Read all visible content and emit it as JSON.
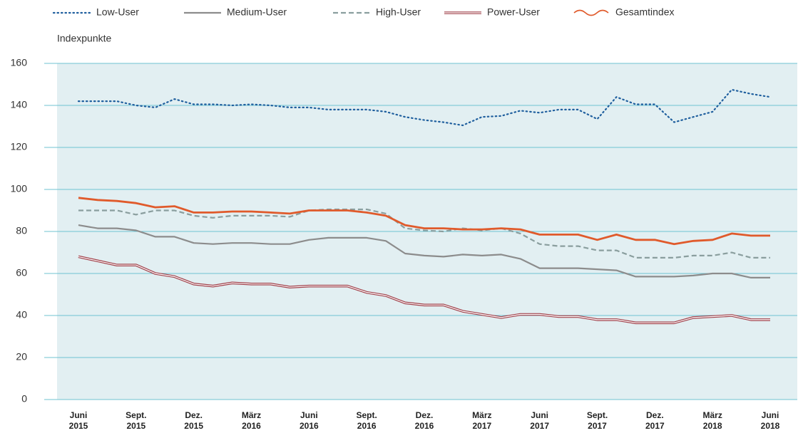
{
  "chart_data": {
    "type": "line",
    "y_label": "Indexpunkte",
    "categories": [
      "Juni\n2015",
      null,
      null,
      "Sept.\n2015",
      null,
      null,
      "Dez.\n2015",
      null,
      null,
      "März\n2016",
      null,
      null,
      "Juni\n2016",
      null,
      null,
      "Sept.\n2016",
      null,
      null,
      "Dez.\n2016",
      null,
      null,
      "März\n2017",
      null,
      null,
      "Juni\n2017",
      null,
      null,
      "Sept.\n2017",
      null,
      null,
      "Dez.\n2017",
      null,
      null,
      "März\n2018",
      null,
      null,
      "Juni\n2018"
    ],
    "series": [
      {
        "name": "Low-User",
        "color": "#1f5f9e",
        "line_style": "dotted",
        "values": [
          142,
          142,
          142,
          140,
          139,
          143,
          140.5,
          140.5,
          140,
          140.5,
          140,
          139,
          139,
          138,
          138,
          138,
          137,
          134.5,
          133,
          132,
          130.5,
          134.5,
          135,
          137.5,
          136.5,
          138,
          138,
          133.5,
          144,
          140.5,
          140.5,
          132,
          134.5,
          137,
          147.5,
          145.5,
          144
        ]
      },
      {
        "name": "Medium-User",
        "color": "#8c8c8c",
        "line_style": "solid",
        "values": [
          83,
          81.5,
          81.5,
          80.5,
          77.5,
          77.5,
          74.5,
          74,
          74.5,
          74.5,
          74,
          74,
          76,
          77,
          77,
          77,
          75.5,
          69.5,
          68.5,
          68,
          69,
          68.5,
          69,
          67,
          62.5,
          62.5,
          62.5,
          62,
          61.5,
          58.5,
          58.5,
          58.5,
          59,
          60,
          60,
          58,
          58
        ]
      },
      {
        "name": "High-User",
        "color": "#8a9e9e",
        "line_style": "dashed",
        "values": [
          90,
          90,
          90,
          88,
          90,
          90,
          87.5,
          86.5,
          87.5,
          87.5,
          87.5,
          87,
          90,
          90.5,
          90.5,
          90.5,
          88.5,
          81.5,
          80.5,
          80,
          81.5,
          80.5,
          81.5,
          79,
          74,
          73,
          73,
          71,
          71,
          67.5,
          67.5,
          67.5,
          68.5,
          68.5,
          70,
          67.5,
          67.5
        ]
      },
      {
        "name": "Power-User",
        "color": "#a0404a",
        "line_style": "double",
        "values": [
          68,
          66,
          64,
          64,
          60,
          58.5,
          55,
          54,
          55.5,
          55,
          55,
          53.5,
          54,
          54,
          54,
          51,
          49.5,
          46,
          45,
          45,
          42,
          40.5,
          39,
          40.5,
          40.5,
          39.5,
          39.5,
          38,
          38,
          36.5,
          36.5,
          36.5,
          39,
          39.5,
          40,
          38,
          38
        ]
      },
      {
        "name": "Gesamtindex",
        "color": "#e05a2b",
        "line_style": "bold",
        "values": [
          96,
          95,
          94.5,
          93.5,
          91.5,
          92,
          89,
          89,
          89.5,
          89.5,
          89,
          88.5,
          90,
          90,
          90,
          89,
          87.5,
          83,
          81.5,
          81.5,
          81,
          81,
          81.5,
          81,
          78.5,
          78.5,
          78.5,
          76,
          78.5,
          76,
          76,
          74,
          75.5,
          76,
          79,
          78,
          78
        ]
      }
    ],
    "ylim": [
      0,
      160
    ],
    "yticks": [
      0,
      20,
      40,
      60,
      80,
      100,
      120,
      140,
      160
    ],
    "grid": true,
    "legend": "top"
  }
}
